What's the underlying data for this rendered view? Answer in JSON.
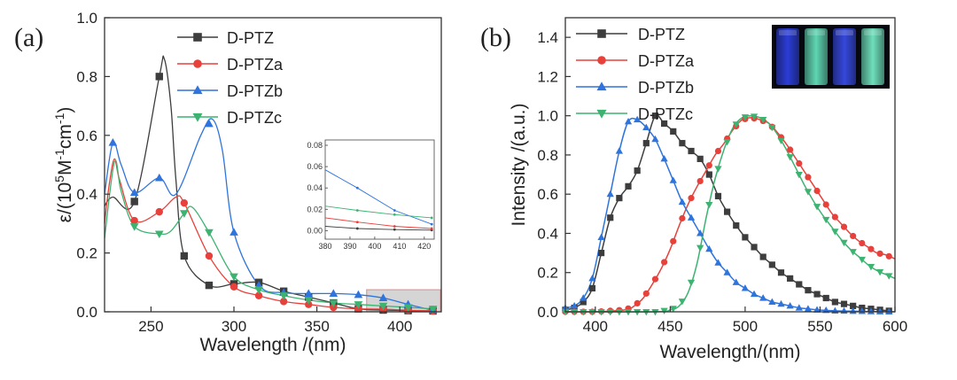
{
  "chart_data": [
    {
      "type": "line",
      "panel_label": "(a)",
      "xlabel": "Wavelength /(nm)",
      "ylabel_parts": [
        "ε/(10",
        "5",
        "M",
        "-1",
        "cm",
        "-1",
        ")"
      ],
      "xlim": [
        222,
        425
      ],
      "ylim": [
        0,
        1.0
      ],
      "xticks": [
        "250",
        "300",
        "350",
        "400"
      ],
      "yticks": [
        "0.0",
        "0.2",
        "0.4",
        "0.6",
        "0.8",
        "1.0"
      ],
      "legend_position": "top-center",
      "highlight_region": {
        "x": [
          380,
          425
        ],
        "y": [
          0,
          0.075
        ],
        "color": "#c7c7c7",
        "edge": "#d99a9a"
      },
      "series": [
        {
          "name": "D-PTZ",
          "color": "#3d3d3d",
          "marker": "square",
          "points": [
            [
              222,
              0.36
            ],
            [
              227,
              0.39
            ],
            [
              240,
              0.375
            ],
            [
              255,
              0.8
            ],
            [
              258,
              0.86
            ],
            [
              262,
              0.7
            ],
            [
              265,
              0.45
            ],
            [
              270,
              0.19
            ],
            [
              285,
              0.09
            ],
            [
              300,
              0.095
            ],
            [
              315,
              0.1
            ],
            [
              330,
              0.07
            ],
            [
              345,
              0.05
            ],
            [
              360,
              0.03
            ],
            [
              375,
              0.01
            ],
            [
              390,
              0.006
            ],
            [
              405,
              0.004
            ],
            [
              420,
              0.003
            ]
          ],
          "marker_x": [
            240,
            255,
            270,
            285,
            300,
            315,
            330,
            345,
            360,
            375,
            390,
            405,
            420
          ]
        },
        {
          "name": "D-PTZa",
          "color": "#e8403b",
          "marker": "circle",
          "points": [
            [
              222,
              0.3
            ],
            [
              225,
              0.44
            ],
            [
              228,
              0.52
            ],
            [
              231,
              0.45
            ],
            [
              240,
              0.31
            ],
            [
              255,
              0.34
            ],
            [
              265,
              0.39
            ],
            [
              270,
              0.37
            ],
            [
              285,
              0.19
            ],
            [
              300,
              0.085
            ],
            [
              315,
              0.055
            ],
            [
              330,
              0.035
            ],
            [
              345,
              0.025
            ],
            [
              360,
              0.015
            ],
            [
              375,
              0.01
            ],
            [
              390,
              0.009
            ],
            [
              405,
              0.005
            ],
            [
              420,
              0.003
            ]
          ],
          "marker_x": [
            240,
            255,
            270,
            285,
            300,
            315,
            330,
            345,
            360,
            375,
            390,
            405,
            420
          ]
        },
        {
          "name": "D-PTZb",
          "color": "#2e74dc",
          "marker": "triangle-up",
          "points": [
            [
              222,
              0.4
            ],
            [
              227,
              0.575
            ],
            [
              232,
              0.5
            ],
            [
              240,
              0.405
            ],
            [
              255,
              0.455
            ],
            [
              265,
              0.4
            ],
            [
              280,
              0.6
            ],
            [
              287,
              0.655
            ],
            [
              293,
              0.55
            ],
            [
              300,
              0.27
            ],
            [
              315,
              0.09
            ],
            [
              330,
              0.065
            ],
            [
              345,
              0.062
            ],
            [
              360,
              0.062
            ],
            [
              375,
              0.058
            ],
            [
              390,
              0.047
            ],
            [
              405,
              0.025
            ],
            [
              420,
              0.005
            ]
          ],
          "marker_x": [
            227,
            240,
            255,
            285,
            300,
            315,
            330,
            345,
            360,
            375,
            390,
            405,
            420
          ]
        },
        {
          "name": "D-PTZc",
          "color": "#3cb371",
          "marker": "triangle-down",
          "points": [
            [
              222,
              0.25
            ],
            [
              228,
              0.51
            ],
            [
              232,
              0.41
            ],
            [
              240,
              0.29
            ],
            [
              255,
              0.265
            ],
            [
              262,
              0.275
            ],
            [
              270,
              0.335
            ],
            [
              275,
              0.355
            ],
            [
              285,
              0.27
            ],
            [
              300,
              0.12
            ],
            [
              315,
              0.075
            ],
            [
              330,
              0.055
            ],
            [
              345,
              0.04
            ],
            [
              360,
              0.03
            ],
            [
              375,
              0.025
            ],
            [
              390,
              0.02
            ],
            [
              405,
              0.015
            ],
            [
              420,
              0.01
            ]
          ],
          "marker_x": [
            240,
            255,
            270,
            285,
            300,
            315,
            330,
            345,
            360,
            375,
            390,
            405,
            420
          ]
        }
      ],
      "inset": {
        "xlim": [
          380,
          424
        ],
        "ylim": [
          -0.008,
          0.085
        ],
        "xticks": [
          "380",
          "390",
          "400",
          "410",
          "420"
        ],
        "yticks": [
          "0.00",
          "0.02",
          "0.04",
          "0.06",
          "0.08"
        ],
        "marker_x": [
          393,
          408,
          423
        ],
        "series": [
          {
            "name": "D-PTZ",
            "color": "#3d3d3d",
            "points": [
              [
                380,
                0.004
              ],
              [
                393,
                0.002
              ],
              [
                408,
                0.001
              ],
              [
                423,
                0.0005
              ]
            ]
          },
          {
            "name": "D-PTZa",
            "color": "#e8403b",
            "points": [
              [
                380,
                0.012
              ],
              [
                393,
                0.008
              ],
              [
                408,
                0.004
              ],
              [
                423,
                0.002
              ]
            ]
          },
          {
            "name": "D-PTZb",
            "color": "#2e74dc",
            "points": [
              [
                380,
                0.057
              ],
              [
                393,
                0.04
              ],
              [
                408,
                0.019
              ],
              [
                423,
                0.006
              ]
            ]
          },
          {
            "name": "D-PTZc",
            "color": "#3cb371",
            "points": [
              [
                380,
                0.023
              ],
              [
                393,
                0.019
              ],
              [
                408,
                0.015
              ],
              [
                423,
                0.012
              ]
            ]
          }
        ]
      }
    },
    {
      "type": "line",
      "panel_label": "(b)",
      "xlabel": "Wavelength/(nm)",
      "ylabel": "Intensity /(a.u.)",
      "xlim": [
        380,
        600
      ],
      "ylim": [
        0,
        1.5
      ],
      "xticks": [
        "400",
        "450",
        "500",
        "550",
        "600"
      ],
      "yticks": [
        "0.0",
        "0.2",
        "0.4",
        "0.6",
        "0.8",
        "1.0",
        "1.2",
        "1.4"
      ],
      "legend_position": "top-left",
      "series": [
        {
          "name": "D-PTZ",
          "color": "#3d3d3d",
          "marker": "square",
          "points": [
            [
              380,
              0.01
            ],
            [
              386,
              0.02
            ],
            [
              392,
              0.05
            ],
            [
              398,
              0.12
            ],
            [
              404,
              0.3
            ],
            [
              410,
              0.48
            ],
            [
              416,
              0.58
            ],
            [
              422,
              0.64
            ],
            [
              428,
              0.72
            ],
            [
              434,
              0.86
            ],
            [
              440,
              1.0
            ],
            [
              446,
              0.96
            ],
            [
              452,
              0.92
            ],
            [
              458,
              0.86
            ],
            [
              464,
              0.82
            ],
            [
              470,
              0.78
            ],
            [
              476,
              0.7
            ],
            [
              482,
              0.59
            ],
            [
              488,
              0.51
            ],
            [
              494,
              0.44
            ],
            [
              500,
              0.38
            ],
            [
              506,
              0.33
            ],
            [
              512,
              0.28
            ],
            [
              518,
              0.24
            ],
            [
              524,
              0.2
            ],
            [
              530,
              0.17
            ],
            [
              536,
              0.14
            ],
            [
              542,
              0.11
            ],
            [
              548,
              0.09
            ],
            [
              554,
              0.07
            ],
            [
              560,
              0.05
            ],
            [
              566,
              0.04
            ],
            [
              572,
              0.03
            ],
            [
              578,
              0.02
            ],
            [
              584,
              0.015
            ],
            [
              590,
              0.01
            ],
            [
              596,
              0.005
            ]
          ]
        },
        {
          "name": "D-PTZa",
          "color": "#e8403b",
          "marker": "circle",
          "points": [
            [
              380,
              0.0
            ],
            [
              400,
              0.0
            ],
            [
              420,
              0.01
            ],
            [
              426,
              0.03
            ],
            [
              432,
              0.07
            ],
            [
              438,
              0.14
            ],
            [
              444,
              0.22
            ],
            [
              450,
              0.32
            ],
            [
              456,
              0.44
            ],
            [
              462,
              0.55
            ],
            [
              468,
              0.64
            ],
            [
              474,
              0.72
            ],
            [
              480,
              0.8
            ],
            [
              486,
              0.86
            ],
            [
              492,
              0.93
            ],
            [
              498,
              0.98
            ],
            [
              504,
              0.99
            ],
            [
              510,
              0.98
            ],
            [
              516,
              0.96
            ],
            [
              522,
              0.91
            ],
            [
              528,
              0.85
            ],
            [
              534,
              0.78
            ],
            [
              540,
              0.71
            ],
            [
              546,
              0.64
            ],
            [
              552,
              0.57
            ],
            [
              558,
              0.5
            ],
            [
              564,
              0.45
            ],
            [
              570,
              0.4
            ],
            [
              576,
              0.36
            ],
            [
              582,
              0.33
            ],
            [
              588,
              0.3
            ],
            [
              594,
              0.29
            ],
            [
              600,
              0.27
            ]
          ]
        },
        {
          "name": "D-PTZb",
          "color": "#2e74dc",
          "marker": "triangle-up",
          "points": [
            [
              380,
              0.02
            ],
            [
              386,
              0.03
            ],
            [
              392,
              0.07
            ],
            [
              398,
              0.17
            ],
            [
              404,
              0.38
            ],
            [
              410,
              0.6
            ],
            [
              416,
              0.82
            ],
            [
              422,
              0.97
            ],
            [
              428,
              0.98
            ],
            [
              434,
              0.94
            ],
            [
              440,
              0.88
            ],
            [
              446,
              0.78
            ],
            [
              452,
              0.67
            ],
            [
              458,
              0.56
            ],
            [
              464,
              0.48
            ],
            [
              470,
              0.4
            ],
            [
              476,
              0.32
            ],
            [
              482,
              0.25
            ],
            [
              488,
              0.2
            ],
            [
              494,
              0.15
            ],
            [
              500,
              0.12
            ],
            [
              506,
              0.09
            ],
            [
              512,
              0.07
            ],
            [
              518,
              0.05
            ],
            [
              524,
              0.04
            ],
            [
              530,
              0.03
            ],
            [
              536,
              0.02
            ],
            [
              542,
              0.015
            ],
            [
              548,
              0.01
            ],
            [
              560,
              0.005
            ],
            [
              580,
              0.002
            ],
            [
              600,
              0.0
            ]
          ]
        },
        {
          "name": "D-PTZc",
          "color": "#3cb371",
          "marker": "triangle-down",
          "points": [
            [
              380,
              0.0
            ],
            [
              440,
              0.0
            ],
            [
              450,
              0.01
            ],
            [
              456,
              0.03
            ],
            [
              462,
              0.1
            ],
            [
              468,
              0.25
            ],
            [
              474,
              0.48
            ],
            [
              480,
              0.68
            ],
            [
              486,
              0.83
            ],
            [
              492,
              0.94
            ],
            [
              498,
              0.99
            ],
            [
              504,
              1.0
            ],
            [
              510,
              0.99
            ],
            [
              516,
              0.96
            ],
            [
              522,
              0.9
            ],
            [
              528,
              0.82
            ],
            [
              534,
              0.73
            ],
            [
              540,
              0.64
            ],
            [
              546,
              0.56
            ],
            [
              552,
              0.49
            ],
            [
              558,
              0.43
            ],
            [
              564,
              0.37
            ],
            [
              570,
              0.32
            ],
            [
              576,
              0.28
            ],
            [
              582,
              0.24
            ],
            [
              588,
              0.21
            ],
            [
              594,
              0.19
            ],
            [
              600,
              0.17
            ]
          ]
        }
      ],
      "photo_vial_colors": [
        "#2b3dd6",
        "#5fd6b0",
        "#3548dc",
        "#6fe0bb"
      ]
    }
  ]
}
